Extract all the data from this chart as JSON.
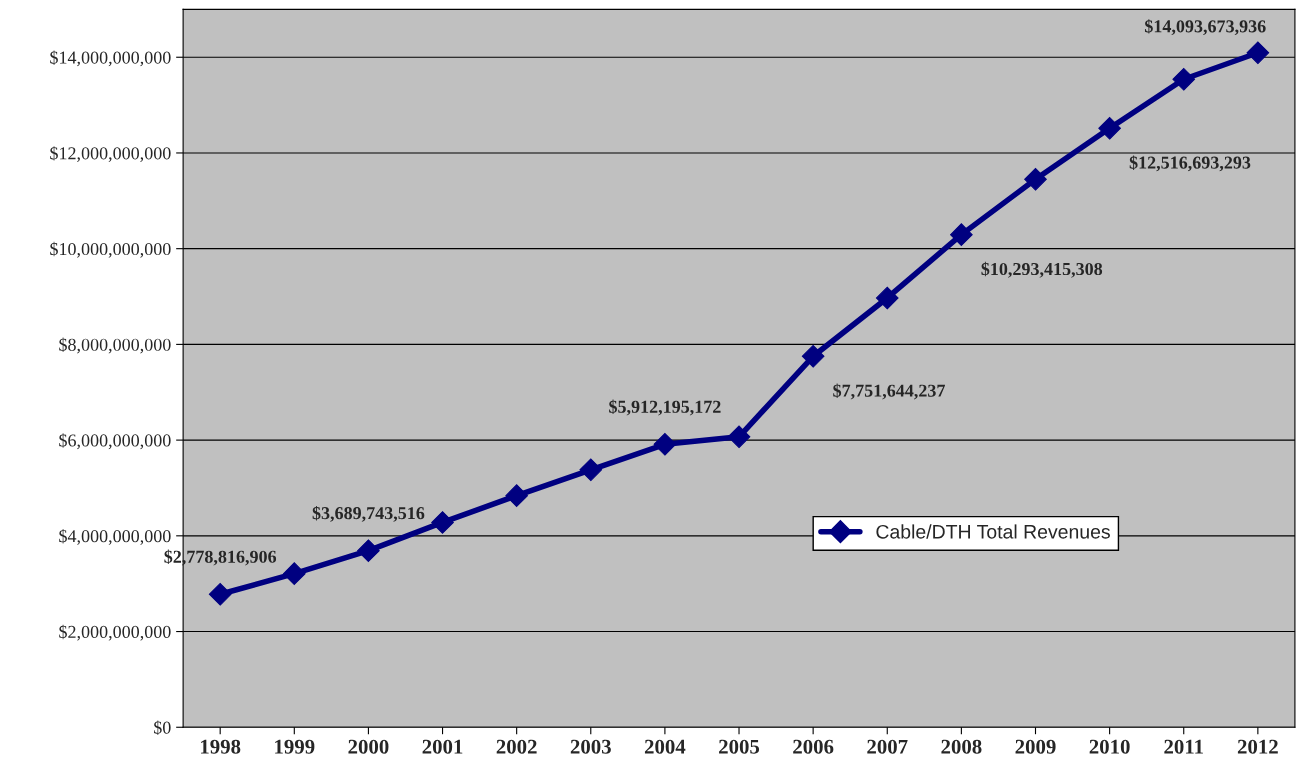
{
  "chart_data": {
    "type": "line",
    "categories": [
      "1998",
      "1999",
      "2000",
      "2001",
      "2002",
      "2003",
      "2004",
      "2005",
      "2006",
      "2007",
      "2008",
      "2009",
      "2010",
      "2011",
      "2012"
    ],
    "series": [
      {
        "name": "Cable/DTH Total Revenues",
        "color": "#000080",
        "values": [
          2778816906,
          3210000000,
          3689743516,
          4280000000,
          4840000000,
          5380000000,
          5912195172,
          6070000000,
          7751644237,
          8970000000,
          10293415308,
          11450000000,
          12516693293,
          13540000000,
          14093673936
        ],
        "value_labels": [
          "$2,778,816,906",
          null,
          "$3,689,743,516",
          null,
          null,
          null,
          "$5,912,195,172",
          null,
          "$7,751,644,237",
          null,
          "$10,293,415,308",
          null,
          "$12,516,693,293",
          null,
          "$14,093,673,936"
        ]
      }
    ],
    "ylim": [
      0,
      15000000000
    ],
    "yticks": [
      {
        "value": 0,
        "label": "$0"
      },
      {
        "value": 2000000000,
        "label": "$2,000,000,000"
      },
      {
        "value": 4000000000,
        "label": "$4,000,000,000"
      },
      {
        "value": 6000000000,
        "label": "$6,000,000,000"
      },
      {
        "value": 8000000000,
        "label": "$8,000,000,000"
      },
      {
        "value": 10000000000,
        "label": "$10,000,000,000"
      },
      {
        "value": 12000000000,
        "label": "$12,000,000,000"
      },
      {
        "value": 14000000000,
        "label": "$14,000,000,000"
      }
    ],
    "grid": "y",
    "legend": "center right",
    "marker": "diamond",
    "line_style": "solid"
  }
}
